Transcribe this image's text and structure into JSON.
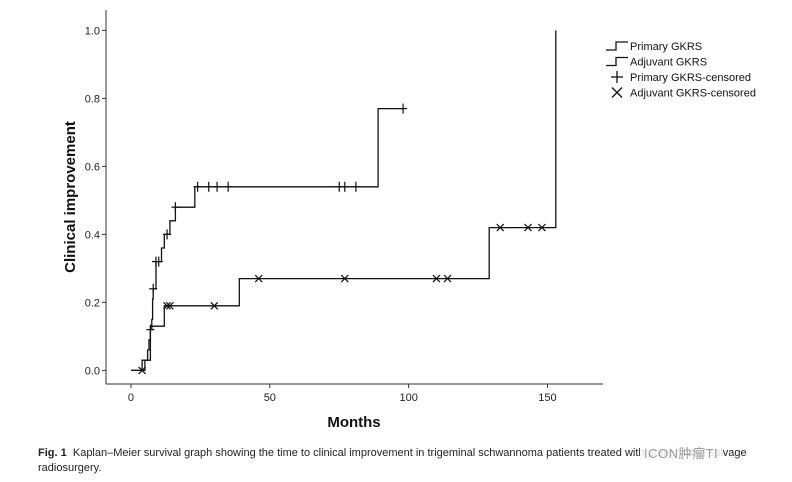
{
  "chart_data": {
    "type": "line",
    "subtype": "kaplan-meier-step",
    "xlabel": "Months",
    "ylabel": "Clinical improvement",
    "xlim": [
      -9,
      170
    ],
    "ylim": [
      -0.04,
      1.06
    ],
    "xticks": [
      0,
      50,
      100,
      150
    ],
    "yticks": [
      0.0,
      0.2,
      0.4,
      0.6,
      0.8,
      1.0
    ],
    "ytick_labels": [
      "0.0",
      "0.2",
      "0.4",
      "0.6",
      "0.8",
      "1.0"
    ],
    "grid": false,
    "legend_position": "top-right",
    "legend": [
      {
        "label": "Primary GKRS",
        "symbol": "step"
      },
      {
        "label": "Adjuvant GKRS",
        "symbol": "step"
      },
      {
        "label": "Primary GKRS-censored",
        "symbol": "plus"
      },
      {
        "label": "Adjuvant GKRS-censored",
        "symbol": "cross"
      }
    ],
    "series": [
      {
        "name": "Primary GKRS",
        "steps": [
          [
            0,
            0.0
          ],
          [
            4,
            0.03
          ],
          [
            6,
            0.06
          ],
          [
            6.5,
            0.09
          ],
          [
            7,
            0.12
          ],
          [
            7.5,
            0.15
          ],
          [
            7.8,
            0.21
          ],
          [
            8,
            0.24
          ],
          [
            9,
            0.32
          ],
          [
            11,
            0.36
          ],
          [
            12,
            0.4
          ],
          [
            14,
            0.44
          ],
          [
            16,
            0.48
          ],
          [
            23,
            0.54
          ],
          [
            89,
            0.77
          ],
          [
            98,
            0.77
          ]
        ],
        "censored_x": [
          7,
          8,
          9,
          10,
          13,
          16,
          24,
          28,
          31,
          35,
          75,
          77,
          81,
          98
        ]
      },
      {
        "name": "Adjuvant GKRS",
        "steps": [
          [
            0,
            0.0
          ],
          [
            5,
            0.03
          ],
          [
            7,
            0.13
          ],
          [
            12,
            0.19
          ],
          [
            39,
            0.27
          ],
          [
            129,
            0.42
          ],
          [
            153,
            1.0
          ]
        ],
        "censored_x": [
          4,
          13,
          14,
          30,
          46,
          77,
          110,
          114,
          133,
          143,
          148
        ]
      }
    ]
  },
  "caption": {
    "label": "Fig. 1",
    "text": "Kaplan–Meier survival graph showing the time to clinical improvement in trigeminal schwannoma patients treated with primary and salvage radiosurgery."
  },
  "watermark": "ICON肿瘤TI"
}
